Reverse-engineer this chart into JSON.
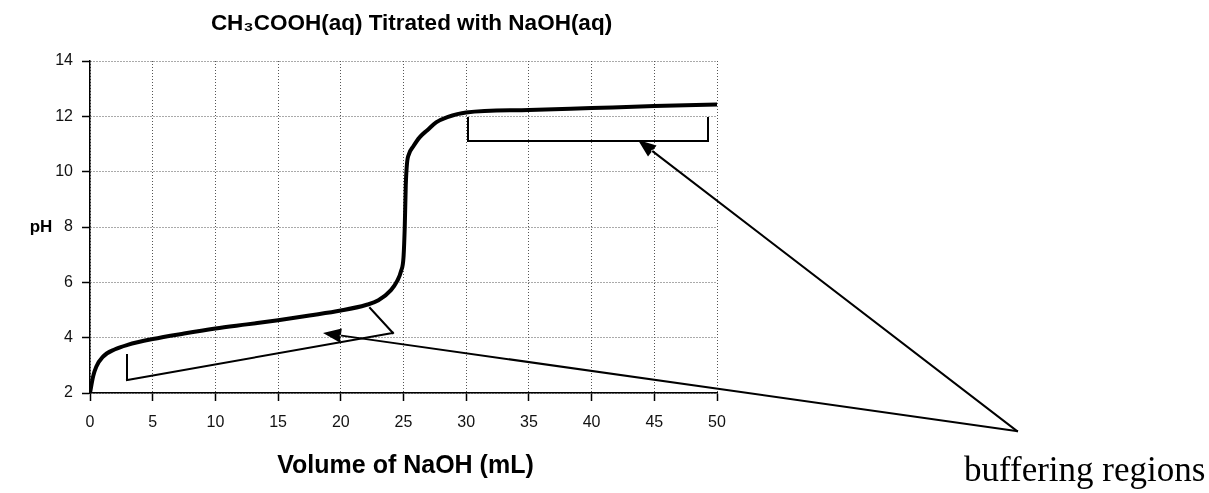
{
  "chart_data": {
    "type": "line",
    "title": "CH₃COOH(aq) Titrated with NaOH(aq)",
    "xlabel": "Volume of NaOH (mL)",
    "ylabel": "pH",
    "annotations": [
      "buffering regions"
    ],
    "x": [
      0,
      0.25,
      0.5,
      1,
      2,
      3,
      5,
      7.5,
      10,
      12.5,
      15,
      17.5,
      20,
      22,
      23,
      24,
      24.5,
      24.8,
      25,
      25.1,
      25.18,
      25.28,
      25.45,
      25.76,
      26.3,
      26.9,
      27.6,
      28.5,
      30,
      35,
      40,
      45,
      50
    ],
    "values": [
      2,
      2.6,
      2.95,
      3.3,
      3.58,
      3.74,
      3.95,
      4.15,
      4.33,
      4.48,
      4.63,
      4.8,
      4.98,
      5.18,
      5.35,
      5.72,
      6.05,
      6.4,
      6.9,
      8,
      9.5,
      10.3,
      10.65,
      10.9,
      11.25,
      11.5,
      11.78,
      11.97,
      12.14,
      12.23,
      12.3,
      12.37,
      12.43
    ],
    "color": "#000000",
    "marker": "none",
    "line_style": "solid",
    "xlim": [
      0,
      50
    ],
    "ylim": [
      2,
      14
    ],
    "xticks": [
      0,
      5,
      10,
      15,
      20,
      25,
      30,
      35,
      40,
      45,
      50
    ],
    "yticks": [
      2,
      4,
      6,
      8,
      10,
      12,
      14
    ],
    "grid": true
  }
}
